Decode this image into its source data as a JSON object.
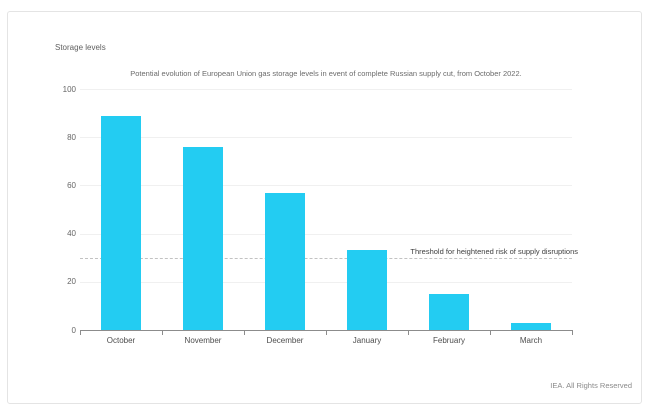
{
  "page": {
    "footer": "IEA. All Rights Reserved"
  },
  "chart_data": {
    "type": "bar",
    "title": "Potential evolution of European Union gas storage levels in event of complete Russian supply cut, from October 2022.",
    "ylabel": "Storage levels",
    "categories": [
      "October",
      "November",
      "December",
      "January",
      "February",
      "March"
    ],
    "values": [
      89,
      76,
      57,
      33,
      15,
      3
    ],
    "ylim": [
      0,
      100
    ],
    "yticks": [
      0,
      20,
      40,
      60,
      80,
      100
    ],
    "grid": true,
    "legend": "none",
    "bar_color": "#23ccf2",
    "threshold": {
      "value": 30,
      "label": "Threshold for heightened risk of supply disruptions",
      "line_style": "dashed"
    }
  }
}
